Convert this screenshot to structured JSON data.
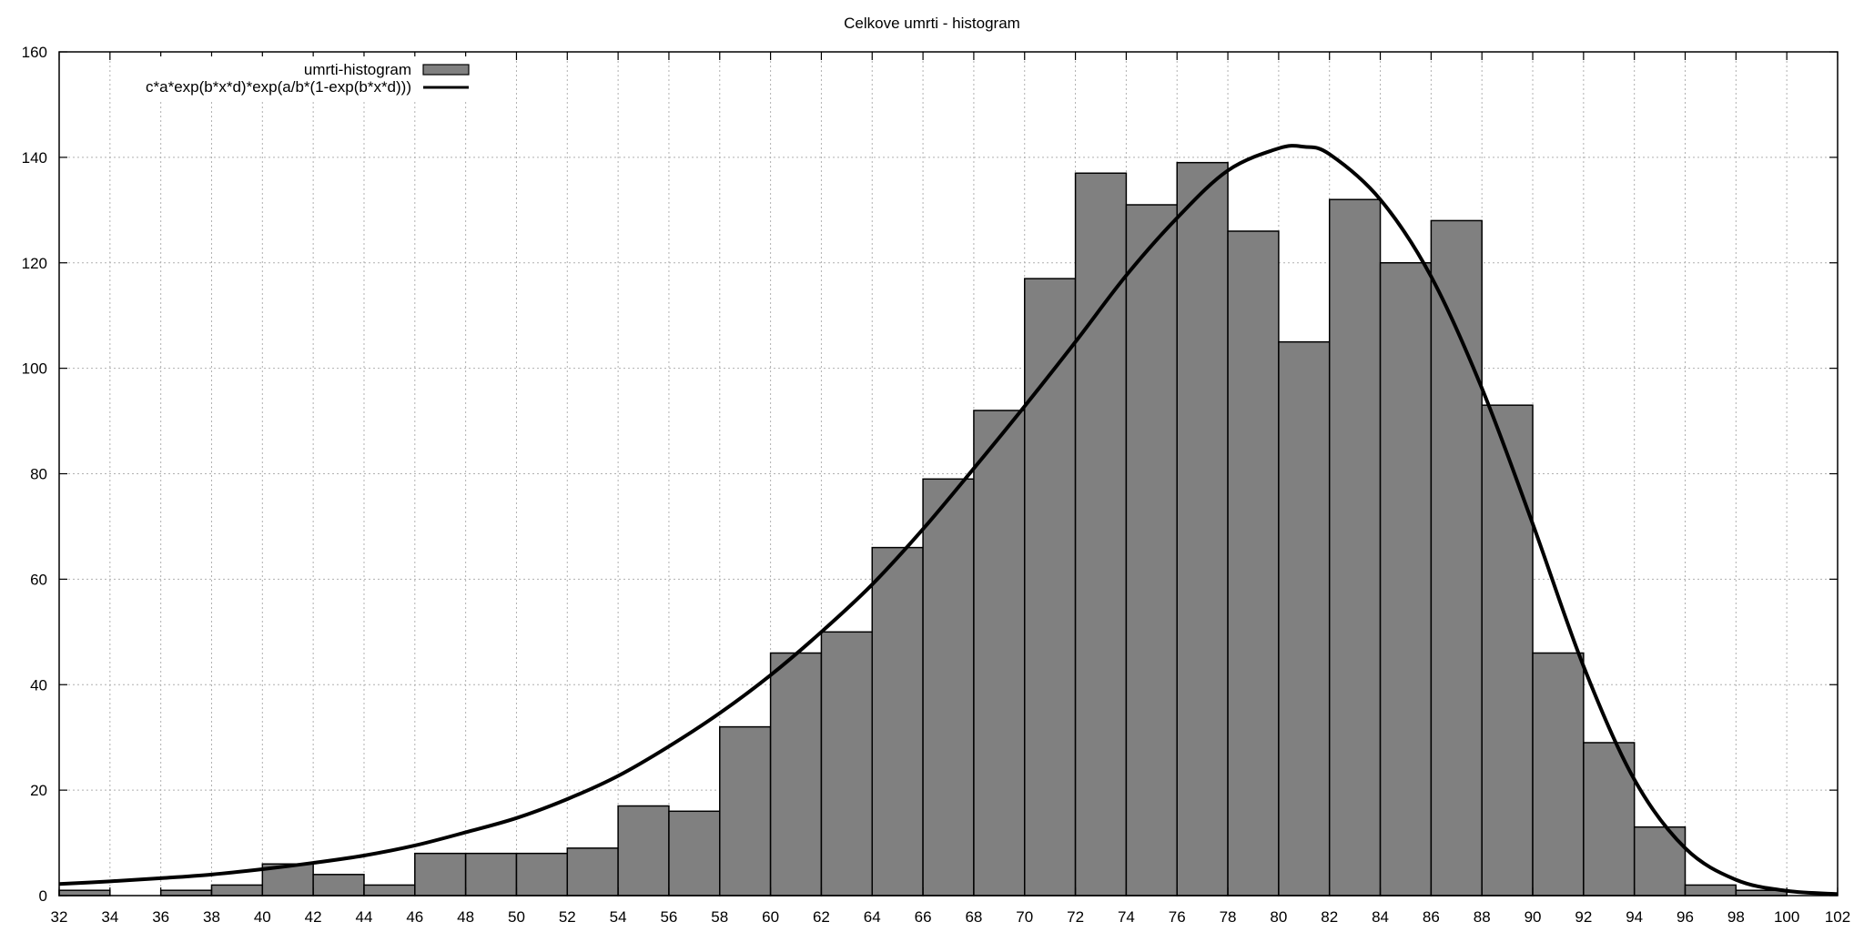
{
  "chart_data": {
    "type": "bar",
    "title": "Celkove umrti - histogram",
    "xlabel": "",
    "ylabel": "",
    "xlim": [
      32,
      102
    ],
    "ylim": [
      0,
      160
    ],
    "xticks": [
      "32",
      "34",
      "36",
      "38",
      "40",
      "42",
      "44",
      "46",
      "48",
      "50",
      "52",
      "54",
      "56",
      "58",
      "60",
      "62",
      "64",
      "66",
      "68",
      "70",
      "72",
      "74",
      "76",
      "78",
      "80",
      "82",
      "84",
      "86",
      "88",
      "90",
      "92",
      "94",
      "96",
      "98",
      "100",
      "102"
    ],
    "yticks": [
      "0",
      "20",
      "40",
      "60",
      "80",
      "100",
      "120",
      "140",
      "160"
    ],
    "grid": true,
    "legend_position": "top-left",
    "bar_color": "#808080",
    "line_color": "#000000",
    "series": [
      {
        "name": "umrti-histogram",
        "type": "bar",
        "bin_width": 2,
        "x": [
          33,
          35,
          37,
          39,
          41,
          43,
          45,
          47,
          49,
          51,
          53,
          55,
          57,
          59,
          61,
          63,
          65,
          67,
          69,
          71,
          73,
          75,
          77,
          79,
          81,
          83,
          85,
          87,
          89,
          91,
          93,
          95,
          97,
          99,
          101
        ],
        "values": [
          1,
          0,
          1,
          2,
          6,
          4,
          2,
          8,
          8,
          8,
          9,
          17,
          16,
          32,
          46,
          50,
          66,
          79,
          92,
          117,
          137,
          131,
          139,
          126,
          105,
          132,
          120,
          128,
          93,
          46,
          29,
          13,
          2,
          1,
          0
        ]
      },
      {
        "name": "c*a*exp(b*x*d)*exp(a/b*(1-exp(b*x*d)))",
        "type": "line",
        "x": [
          32,
          34,
          36,
          38,
          40,
          42,
          44,
          46,
          48,
          50,
          52,
          54,
          56,
          58,
          60,
          62,
          64,
          66,
          68,
          70,
          72,
          74,
          76,
          78,
          80,
          81,
          82,
          84,
          86,
          88,
          90,
          92,
          94,
          96,
          98,
          100,
          102
        ],
        "values": [
          2.2,
          2.7,
          3.3,
          4.0,
          5.0,
          6.2,
          7.6,
          9.5,
          12,
          14.7,
          18.3,
          22.7,
          28.3,
          34.6,
          41.8,
          50,
          59,
          69.5,
          81,
          92.8,
          105,
          117.6,
          128.5,
          137.5,
          141.7,
          142,
          140.6,
          132,
          117.4,
          96.2,
          70.5,
          43.5,
          22,
          9,
          3,
          0.9,
          0.3
        ]
      }
    ]
  }
}
